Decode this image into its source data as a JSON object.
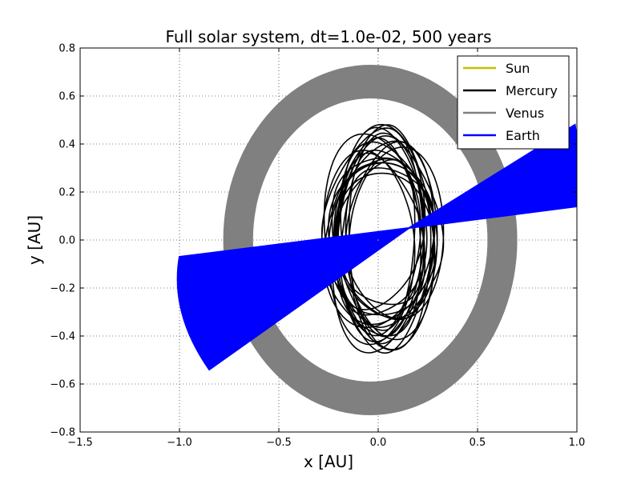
{
  "chart_data": {
    "type": "line",
    "title": "Full solar system, dt=1.0e-02, 500 years",
    "xlabel": "x [AU]",
    "ylabel": "y [AU]",
    "xlim": [
      -1.5,
      1.0
    ],
    "ylim": [
      -0.8,
      0.8
    ],
    "xticks": [
      -1.5,
      -1.0,
      -0.5,
      0.0,
      0.5,
      1.0
    ],
    "xtick_labels": [
      "−1.5",
      "−1.0",
      "−0.5",
      "0.0",
      "0.5",
      "1.0"
    ],
    "yticks": [
      -0.8,
      -0.6,
      -0.4,
      -0.2,
      0.0,
      0.2,
      0.4,
      0.6,
      0.8
    ],
    "ytick_labels": [
      "−0.8",
      "−0.6",
      "−0.4",
      "−0.2",
      "0.0",
      "0.2",
      "0.4",
      "0.6",
      "0.8"
    ],
    "grid": true,
    "legend_position": "top-right",
    "series": [
      {
        "name": "Sun",
        "color": "#bfbf00",
        "kind": "point",
        "x": [
          0.0
        ],
        "y": [
          0.0
        ]
      },
      {
        "name": "Mercury",
        "color": "#000000",
        "kind": "precessing-ellipse",
        "center": [
          0.02,
          0.005
        ],
        "semi_axis_x": [
          0.27,
          0.2
        ],
        "semi_axis_y": [
          0.46,
          0.3
        ],
        "revolutions": 22
      },
      {
        "name": "Venus",
        "color": "#808080",
        "kind": "ring-band",
        "center": [
          -0.04,
          0.0
        ],
        "outer_semi_axes": [
          0.74,
          0.73
        ],
        "inner_semi_axes": [
          0.59,
          0.59
        ]
      },
      {
        "name": "Earth",
        "color": "#0000ff",
        "kind": "fan-band",
        "x": [
          -1.0,
          0.155,
          0.99
        ],
        "y": [
          -0.07,
          0.05,
          0.48
        ],
        "x2": [
          -0.85,
          0.155,
          1.0
        ],
        "y2": [
          -0.54,
          0.05,
          0.14
        ]
      }
    ]
  }
}
